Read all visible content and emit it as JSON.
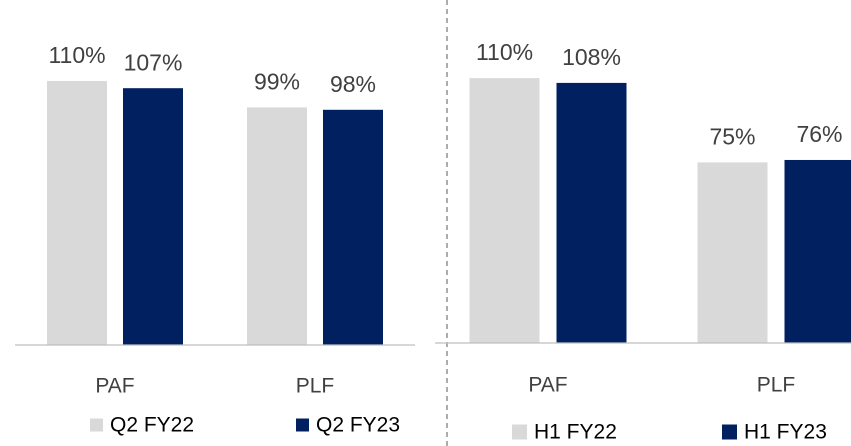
{
  "chart_data": [
    {
      "type": "bar",
      "categories": [
        "PAF",
        "PLF"
      ],
      "ylim": [
        0,
        120
      ],
      "series": [
        {
          "name": "Q2 FY22",
          "color": "#d9d9d9",
          "values": [
            110,
            99
          ],
          "value_labels": [
            "110%",
            "99%"
          ]
        },
        {
          "name": "Q2 FY23",
          "color": "#002060",
          "values": [
            107,
            98
          ],
          "value_labels": [
            "107%",
            "98%"
          ]
        }
      ]
    },
    {
      "type": "bar",
      "categories": [
        "PAF",
        "PLF"
      ],
      "ylim": [
        0,
        120
      ],
      "series": [
        {
          "name": "H1 FY22",
          "color": "#d9d9d9",
          "values": [
            110,
            75
          ],
          "value_labels": [
            "110%",
            "75%"
          ]
        },
        {
          "name": "H1 FY23",
          "color": "#002060",
          "values": [
            108,
            76
          ],
          "value_labels": [
            "108%",
            "76%"
          ]
        }
      ]
    }
  ]
}
